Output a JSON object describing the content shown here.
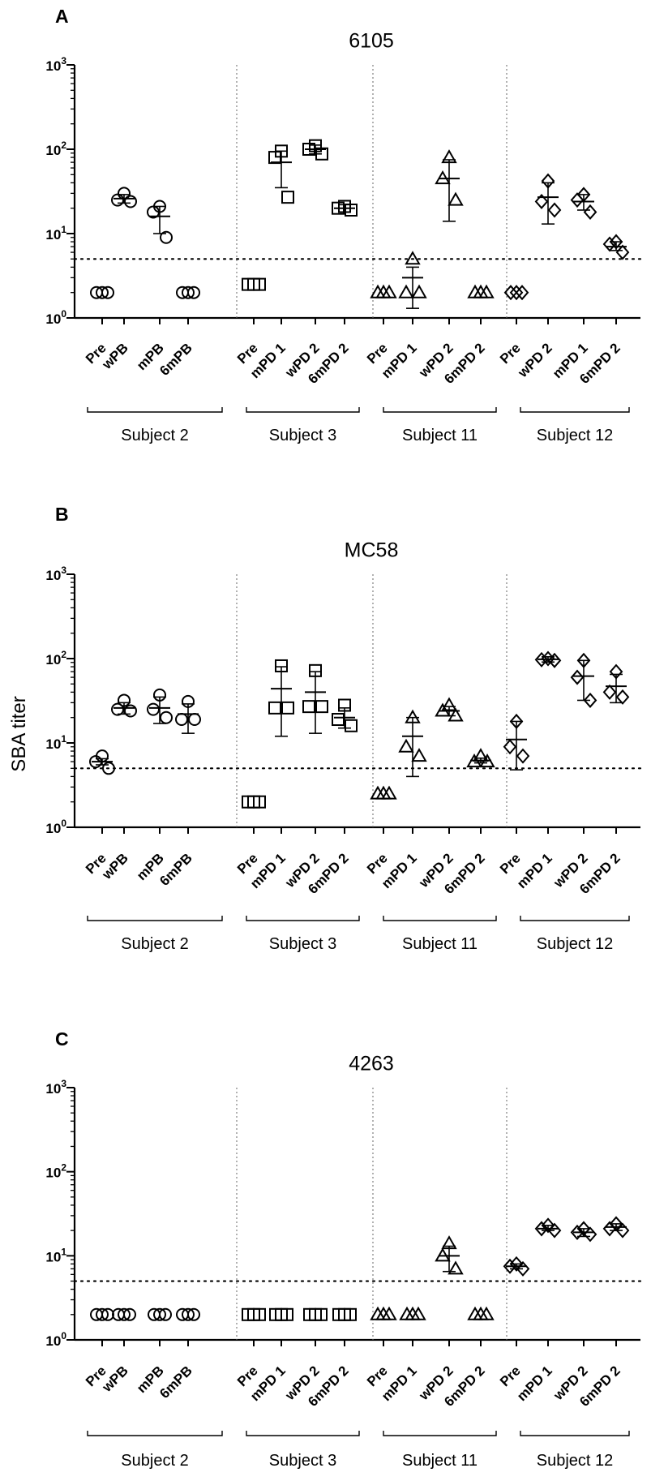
{
  "figure": {
    "y_axis_label": "SBA titer",
    "y_tick_labels": [
      {
        "base": "10",
        "exp": "0"
      },
      {
        "base": "10",
        "exp": "1"
      },
      {
        "base": "10",
        "exp": "2"
      },
      {
        "base": "10",
        "exp": "3"
      }
    ],
    "threshold": 5
  },
  "chart_data": [
    {
      "type": "scatter",
      "panel_letter": "A",
      "title": "6105",
      "ylabel": "SBA titer",
      "yscale": "log10",
      "ylim": [
        1,
        1000
      ],
      "threshold_line": 5,
      "subjects": [
        {
          "name": "Subject 2",
          "marker": "circle",
          "groups": [
            {
              "label": "Pre",
              "points": [
                2,
                2,
                2
              ]
            },
            {
              "label": "wPB",
              "points": [
                30,
                25,
                24
              ],
              "mean": 26,
              "sem_low": 23,
              "sem_high": 29
            },
            {
              "label": "mPB",
              "points": [
                21,
                18,
                9
              ],
              "mean": 16,
              "sem_low": 10,
              "sem_high": 21
            },
            {
              "label": "6mPB",
              "points": [
                2,
                2,
                2
              ]
            }
          ]
        },
        {
          "name": "Subject 3",
          "marker": "square",
          "groups": [
            {
              "label": "Pre",
              "points": [
                2.5,
                2.5,
                2.5
              ]
            },
            {
              "label": "mPD 1",
              "points": [
                95,
                80,
                27
              ],
              "mean": 70,
              "sem_low": 35,
              "sem_high": 95
            },
            {
              "label": "wPD 2",
              "points": [
                110,
                100,
                88
              ],
              "mean": 100,
              "sem_low": 88,
              "sem_high": 112
            },
            {
              "label": "6mPD 2",
              "points": [
                21,
                20,
                19
              ],
              "mean": 20,
              "sem_low": 18,
              "sem_high": 22
            }
          ]
        },
        {
          "name": "Subject 11",
          "marker": "triangle",
          "groups": [
            {
              "label": "Pre",
              "points": [
                2,
                2,
                2
              ]
            },
            {
              "label": "mPD 1",
              "points": [
                5,
                2,
                2
              ],
              "mean": 3,
              "sem_low": 1.3,
              "sem_high": 4
            },
            {
              "label": "wPD 2",
              "points": [
                80,
                45,
                25
              ],
              "mean": 45,
              "sem_low": 14,
              "sem_high": 75
            },
            {
              "label": "6mPD 2",
              "points": [
                2,
                2,
                2
              ]
            }
          ]
        },
        {
          "name": "Subject 12",
          "marker": "diamond",
          "groups": [
            {
              "label": "Pre",
              "points": [
                2,
                2,
                2
              ]
            },
            {
              "label": "wPD 2",
              "points": [
                42,
                24,
                19
              ],
              "mean": 27,
              "sem_low": 13,
              "sem_high": 40
            },
            {
              "label": "mPD 1",
              "points": [
                29,
                25,
                18
              ],
              "mean": 24,
              "sem_low": 19,
              "sem_high": 29
            },
            {
              "label": "6mPD 2",
              "points": [
                8,
                7.5,
                6
              ],
              "mean": 7,
              "sem_low": 6.3,
              "sem_high": 8
            }
          ]
        }
      ]
    },
    {
      "type": "scatter",
      "panel_letter": "B",
      "title": "MC58",
      "ylabel": "SBA titer",
      "yscale": "log10",
      "ylim": [
        1,
        1000
      ],
      "threshold_line": 5,
      "subjects": [
        {
          "name": "Subject 2",
          "marker": "circle",
          "groups": [
            {
              "label": "Pre",
              "points": [
                7,
                6,
                5
              ],
              "mean": 6,
              "sem_low": 5.5,
              "sem_high": 6.5
            },
            {
              "label": "wPB",
              "points": [
                32,
                25,
                24
              ],
              "mean": 26,
              "sem_low": 22,
              "sem_high": 30
            },
            {
              "label": "mPB",
              "points": [
                37,
                25,
                20
              ],
              "mean": 26,
              "sem_low": 17,
              "sem_high": 35
            },
            {
              "label": "6mPB",
              "points": [
                31,
                19,
                19
              ],
              "mean": 22,
              "sem_low": 13,
              "sem_high": 29
            }
          ]
        },
        {
          "name": "Subject 3",
          "marker": "square",
          "groups": [
            {
              "label": "Pre",
              "points": [
                2,
                2,
                2
              ]
            },
            {
              "label": "mPD 1",
              "points": [
                82,
                26,
                26
              ],
              "mean": 44,
              "sem_low": 12,
              "sem_high": 80
            },
            {
              "label": "wPD 2",
              "points": [
                72,
                27,
                27
              ],
              "mean": 40,
              "sem_low": 13,
              "sem_high": 70
            },
            {
              "label": "6mPD 2",
              "points": [
                28,
                19,
                16
              ],
              "mean": 20,
              "sem_low": 15,
              "sem_high": 26
            }
          ]
        },
        {
          "name": "Subject 11",
          "marker": "triangle",
          "groups": [
            {
              "label": "Pre",
              "points": [
                2.5,
                2.5,
                2.5
              ]
            },
            {
              "label": "mPD 1",
              "points": [
                20,
                9,
                7
              ],
              "mean": 12,
              "sem_low": 4,
              "sem_high": 20
            },
            {
              "label": "wPD 2",
              "points": [
                28,
                24,
                21
              ],
              "mean": 24,
              "sem_low": 21,
              "sem_high": 27
            },
            {
              "label": "6mPD 2",
              "points": [
                7,
                6,
                6
              ],
              "mean": 6.2,
              "sem_low": 5.8,
              "sem_high": 6.6
            }
          ]
        },
        {
          "name": "Subject 12",
          "marker": "diamond",
          "groups": [
            {
              "label": "Pre",
              "points": [
                18,
                9,
                7
              ],
              "mean": 11,
              "sem_low": 4.8,
              "sem_high": 18
            },
            {
              "label": "mPD 1",
              "points": [
                100,
                97,
                95
              ],
              "mean": 98,
              "sem_low": 91,
              "sem_high": 105
            },
            {
              "label": "wPD 2",
              "points": [
                95,
                60,
                32
              ],
              "mean": 62,
              "sem_low": 32,
              "sem_high": 95
            },
            {
              "label": "6mPD 2",
              "points": [
                70,
                40,
                35
              ],
              "mean": 47,
              "sem_low": 30,
              "sem_high": 65
            }
          ]
        }
      ]
    },
    {
      "type": "scatter",
      "panel_letter": "C",
      "title": "4263",
      "ylabel": "SBA titer",
      "yscale": "log10",
      "ylim": [
        1,
        1000
      ],
      "threshold_line": 5,
      "subjects": [
        {
          "name": "Subject 2",
          "marker": "circle",
          "groups": [
            {
              "label": "Pre",
              "points": [
                2,
                2,
                2
              ]
            },
            {
              "label": "wPB",
              "points": [
                2,
                2,
                2
              ]
            },
            {
              "label": "mPB",
              "points": [
                2,
                2,
                2
              ]
            },
            {
              "label": "6mPB",
              "points": [
                2,
                2,
                2
              ]
            }
          ]
        },
        {
          "name": "Subject 3",
          "marker": "square",
          "groups": [
            {
              "label": "Pre",
              "points": [
                2,
                2,
                2
              ]
            },
            {
              "label": "mPD 1",
              "points": [
                2,
                2,
                2
              ]
            },
            {
              "label": "wPD 2",
              "points": [
                2,
                2,
                2
              ]
            },
            {
              "label": "6mPD 2",
              "points": [
                2,
                2,
                2
              ]
            }
          ]
        },
        {
          "name": "Subject 11",
          "marker": "triangle",
          "groups": [
            {
              "label": "Pre",
              "points": [
                2,
                2,
                2
              ]
            },
            {
              "label": "mPD 1",
              "points": [
                2,
                2,
                2
              ]
            },
            {
              "label": "wPD 2",
              "points": [
                14,
                10,
                7
              ],
              "mean": 10,
              "sem_low": 6.5,
              "sem_high": 13
            },
            {
              "label": "6mPD 2",
              "points": [
                2,
                2,
                2
              ]
            }
          ]
        },
        {
          "name": "Subject 12",
          "marker": "diamond",
          "groups": [
            {
              "label": "Pre",
              "points": [
                8,
                7.5,
                7
              ],
              "mean": 7.5,
              "sem_low": 7,
              "sem_high": 8
            },
            {
              "label": "mPD 1",
              "points": [
                23,
                21,
                20
              ],
              "mean": 21,
              "sem_low": 20,
              "sem_high": 23
            },
            {
              "label": "wPD 2",
              "points": [
                21,
                19,
                18
              ],
              "mean": 19,
              "sem_low": 17,
              "sem_high": 21
            },
            {
              "label": "6mPD 2",
              "points": [
                24,
                21,
                20
              ],
              "mean": 22,
              "sem_low": 20,
              "sem_high": 24
            }
          ]
        }
      ]
    }
  ]
}
